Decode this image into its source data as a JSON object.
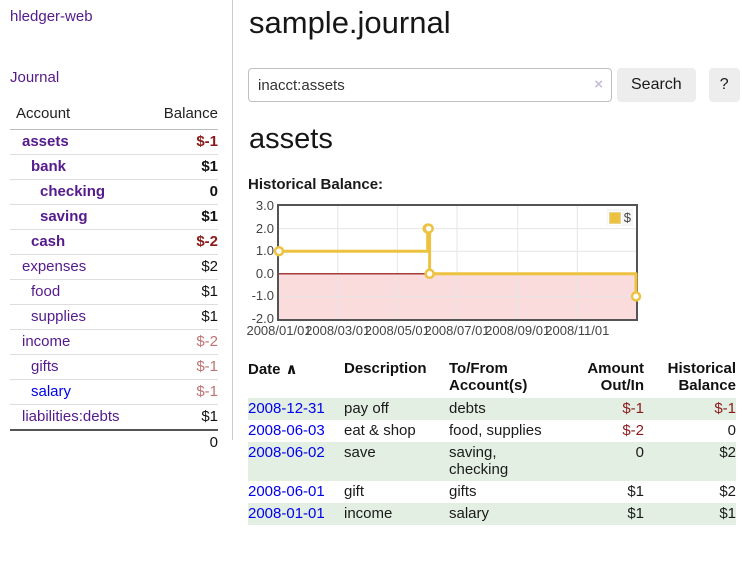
{
  "app": {
    "title": "hledger-web",
    "nav_journal": "Journal"
  },
  "sidebar": {
    "header": {
      "account": "Account",
      "balance": "Balance"
    },
    "accounts": [
      {
        "name": "assets",
        "depth": 1,
        "bold": true,
        "balance": "$-1",
        "negative": true,
        "link_blue": false
      },
      {
        "name": "bank",
        "depth": 2,
        "bold": true,
        "balance": "$1",
        "negative": false,
        "link_blue": false
      },
      {
        "name": "checking",
        "depth": 3,
        "bold": true,
        "balance": "0",
        "negative": false,
        "link_blue": false
      },
      {
        "name": "saving",
        "depth": 3,
        "bold": true,
        "balance": "$1",
        "negative": false,
        "link_blue": false
      },
      {
        "name": "cash",
        "depth": 2,
        "bold": true,
        "balance": "$-2",
        "negative": true,
        "link_blue": false
      },
      {
        "name": "expenses",
        "depth": 1,
        "bold": false,
        "balance": "$2",
        "negative": false,
        "link_blue": false
      },
      {
        "name": "food",
        "depth": 2,
        "bold": false,
        "balance": "$1",
        "negative": false,
        "link_blue": false
      },
      {
        "name": "supplies",
        "depth": 2,
        "bold": false,
        "balance": "$1",
        "negative": false,
        "link_blue": false
      },
      {
        "name": "income",
        "depth": 1,
        "bold": false,
        "balance": "$-2",
        "negative": true,
        "link_blue": false
      },
      {
        "name": "gifts",
        "depth": 2,
        "bold": false,
        "balance": "$-1",
        "negative": true,
        "link_blue": false
      },
      {
        "name": "salary",
        "depth": 2,
        "bold": false,
        "balance": "$-1",
        "negative": true,
        "link_blue": true
      },
      {
        "name": "liabilities:debts",
        "depth": 1,
        "bold": false,
        "balance": "$1",
        "negative": false,
        "link_blue": false
      }
    ],
    "total": "0"
  },
  "main": {
    "title": "sample.journal",
    "search": {
      "value": "inacct:assets",
      "clear_icon": "×",
      "button": "Search",
      "help": "?"
    },
    "account_heading": "assets"
  },
  "chart_data": {
    "type": "line",
    "title": "Historical Balance:",
    "legend": {
      "label": "$",
      "position": "top-right"
    },
    "series": [
      {
        "name": "$",
        "color": "#edc240",
        "step": true,
        "points": [
          [
            "2008-01-01",
            1
          ],
          [
            "2008-06-01",
            2
          ],
          [
            "2008-06-02",
            2
          ],
          [
            "2008-06-03",
            0
          ],
          [
            "2008-12-31",
            -1
          ]
        ]
      }
    ],
    "xlim": [
      "2008-01-01",
      "2008-12-31"
    ],
    "ylim": [
      -2,
      3
    ],
    "y_ticks": [
      "3.0",
      "2.0",
      "1.0",
      "0.0",
      "-1.0",
      "-2.0"
    ],
    "x_ticks": [
      "2008/01/01",
      "2008/03/01",
      "2008/05/01",
      "2008/07/01",
      "2008/09/01",
      "2008/11/01"
    ],
    "grid": true,
    "grid_color": "#e6e6e6",
    "negative_region_color": "#fbdcdc",
    "zero_line_color": "#8b0000",
    "border_color": "#545454"
  },
  "register": {
    "sort_icon": "∧",
    "headers": {
      "date": "Date",
      "description": "Description",
      "accounts": "To/From Account(s)",
      "amount": "Amount Out/In",
      "balance": "Historical Balance"
    },
    "rows": [
      {
        "date": "2008-12-31",
        "description": "pay off",
        "accounts": "debts",
        "amount": "$-1",
        "balance": "$-1"
      },
      {
        "date": "2008-06-03",
        "description": "eat & shop",
        "accounts": "food, supplies",
        "amount": "$-2",
        "balance": "0"
      },
      {
        "date": "2008-06-02",
        "description": "save",
        "accounts": "saving, checking",
        "amount": "0",
        "balance": "$2"
      },
      {
        "date": "2008-06-01",
        "description": "gift",
        "accounts": "gifts",
        "amount": "$1",
        "balance": "$2"
      },
      {
        "date": "2008-01-01",
        "description": "income",
        "accounts": "salary",
        "amount": "$1",
        "balance": "$1"
      }
    ]
  }
}
